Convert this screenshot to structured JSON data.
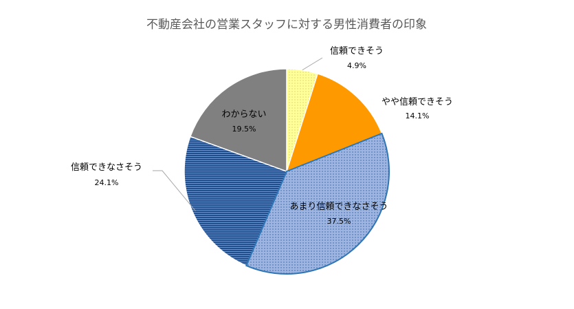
{
  "chart_data": {
    "type": "pie",
    "title": "不動産会社の営業スタッフに対する男性消費者の印象",
    "slices": [
      {
        "label": "信頼できそう",
        "pct_label": "4.9%",
        "value": 4.9,
        "color": "#FFFF99",
        "pattern": "dots-light"
      },
      {
        "label": "やや信頼できそう",
        "pct_label": "14.1%",
        "value": 14.1,
        "color": "#FF9900",
        "pattern": "solid"
      },
      {
        "label": "あまり信頼できなさそう",
        "pct_label": "37.5%",
        "value": 37.5,
        "color": "#8EA9DB",
        "pattern": "dots-dark"
      },
      {
        "label": "信頼できなさそう",
        "pct_label": "24.1%",
        "value": 24.1,
        "color": "#2E5E9E",
        "pattern": "hlines"
      },
      {
        "label": "わからない",
        "pct_label": "19.5%",
        "value": 19.5,
        "color": "#808080",
        "pattern": "solid"
      }
    ]
  }
}
